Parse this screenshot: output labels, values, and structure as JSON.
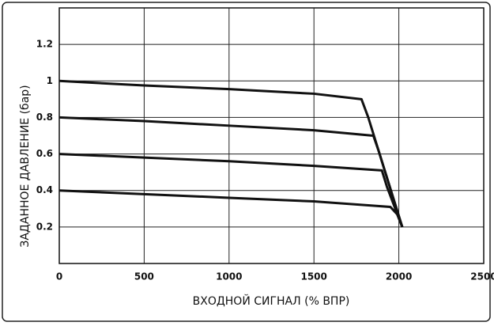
{
  "chart_data": {
    "type": "line",
    "x_label": "ВХОДНОЙ СИГНАЛ (% ВПР)",
    "y_label": "ЗАДАННОЕ ДАВЛЕНИЕ (бар)",
    "xlim": [
      0,
      2500
    ],
    "xticks": [
      0,
      500,
      1000,
      1500,
      2000,
      2500
    ],
    "ylim": [
      0,
      1.4
    ],
    "yticks": [
      0.2,
      0.4,
      0.6,
      0.8,
      1.0,
      1.2
    ],
    "grid": true,
    "series": [
      {
        "color": "#111111",
        "x": [
          0,
          500,
          1000,
          1500,
          1780,
          1820,
          2020
        ],
        "values": [
          1.0,
          0.975,
          0.955,
          0.93,
          0.9,
          0.8,
          0.2
        ]
      },
      {
        "color": "#111111",
        "x": [
          0,
          500,
          1000,
          1500,
          1850,
          1880,
          2020
        ],
        "values": [
          0.8,
          0.78,
          0.755,
          0.73,
          0.7,
          0.62,
          0.2
        ]
      },
      {
        "color": "#111111",
        "x": [
          0,
          500,
          1000,
          1500,
          1900,
          1930,
          2020
        ],
        "values": [
          0.6,
          0.58,
          0.56,
          0.535,
          0.51,
          0.42,
          0.2
        ]
      },
      {
        "color": "#111111",
        "x": [
          0,
          500,
          1000,
          1500,
          1950,
          1990,
          2020
        ],
        "values": [
          0.4,
          0.38,
          0.36,
          0.34,
          0.31,
          0.27,
          0.2
        ]
      }
    ]
  }
}
